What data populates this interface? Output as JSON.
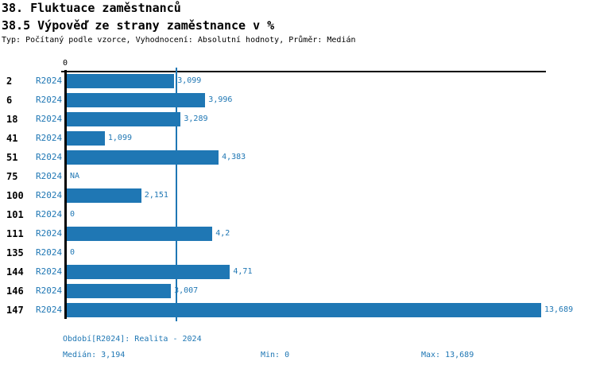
{
  "header": {
    "title": "38. Fluktuace zaměstnanců",
    "subtitle": "38.5 Výpověď ze strany zaměstnance v %",
    "meta_line": "Typ: Počítaný podle vzorce, Vyhodnocení: Absolutní hodnoty, Průměr: Medián"
  },
  "colors": {
    "accent": "#1f77b4",
    "text": "#000000",
    "background": "#ffffff"
  },
  "chart_data": {
    "type": "bar",
    "orientation": "horizontal",
    "title": "38.5 Výpověď ze strany zaměstnance v %",
    "categories": [
      "2",
      "6",
      "18",
      "41",
      "51",
      "75",
      "100",
      "101",
      "111",
      "135",
      "144",
      "146",
      "147"
    ],
    "series_label": "R2024",
    "values": [
      3.099,
      3.996,
      3.289,
      1.099,
      4.383,
      null,
      2.151,
      0,
      4.2,
      0,
      4.71,
      3.007,
      13.689
    ],
    "value_labels": [
      "3,099",
      "3,996",
      "3,289",
      "1,099",
      "4,383",
      "NA",
      "2,151",
      "0",
      "4,2",
      "0",
      "4,71",
      "3,007",
      "13,689"
    ],
    "xlim": [
      0,
      13.689
    ],
    "x_tick_labels": [
      "0"
    ],
    "grid": false,
    "median_line_value": 3.194,
    "median_label": "3,194"
  },
  "footer": {
    "period_line": "Období[R2024]: Realita - 2024",
    "median": "Medián: 3,194",
    "min": "Min: 0",
    "max": "Max: 13,689"
  }
}
